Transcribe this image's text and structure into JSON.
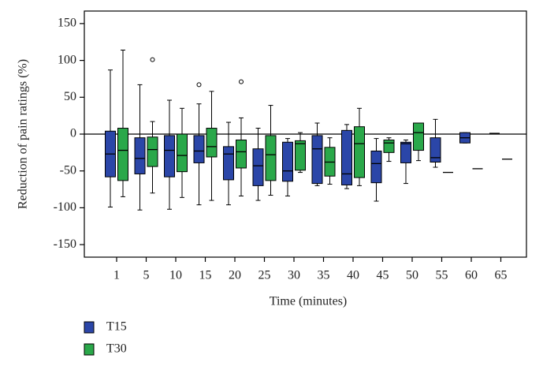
{
  "chart_data": {
    "type": "box",
    "y_label": "Reduction of pain ratings (%)",
    "x_label": "Time (minutes)",
    "categories": [
      "1",
      "5",
      "10",
      "15",
      "20",
      "25",
      "30",
      "35",
      "40",
      "45",
      "50",
      "55",
      "60",
      "65"
    ],
    "ylim": [
      -167,
      167
    ],
    "yticks": [
      -150,
      -100,
      -50,
      0,
      50,
      100,
      150
    ],
    "legend": "bottom-left",
    "series": [
      {
        "name": "T15",
        "color": "#2b46a8",
        "low": [
          -99,
          -103,
          -102,
          -96,
          -96,
          -90,
          -84,
          -70,
          -74,
          -91,
          -67,
          -45,
          -12,
          null
        ],
        "q1": [
          -58,
          -54,
          -58,
          -39,
          -62,
          -70,
          -64,
          -67,
          -69,
          -66,
          -39,
          -38,
          -12,
          null
        ],
        "median": [
          -27,
          -33,
          -22,
          -23,
          -27,
          -43,
          -50,
          -20,
          -54,
          -40,
          -13,
          -32,
          -5,
          1
        ],
        "q3": [
          4,
          -5,
          -2,
          -2,
          -17,
          -20,
          -11,
          -2,
          5,
          -23,
          -11,
          -5,
          2,
          null
        ],
        "high": [
          87,
          67,
          46,
          41,
          16,
          8,
          -6,
          15,
          13,
          -6,
          -8,
          20,
          2,
          null
        ],
        "outliers": [
          [],
          [],
          [],
          [
            67
          ],
          [],
          [],
          [],
          [],
          [],
          [],
          [],
          [],
          [],
          []
        ]
      },
      {
        "name": "T30",
        "color": "#2aa84a",
        "low": [
          -85,
          -80,
          -86,
          -90,
          -84,
          -83,
          -52,
          -68,
          -70,
          -37,
          -36,
          null,
          null,
          null
        ],
        "q1": [
          -63,
          -44,
          -51,
          -31,
          -46,
          -63,
          -49,
          -57,
          -59,
          -25,
          -22,
          null,
          null,
          null
        ],
        "median": [
          -22,
          -21,
          -29,
          -17,
          -24,
          -28,
          -13,
          -38,
          -13,
          -12,
          2,
          -52,
          -47,
          -34
        ],
        "q3": [
          8,
          -4,
          0,
          8,
          -8,
          -2,
          -9,
          -18,
          10,
          -8,
          15,
          null,
          null,
          null
        ],
        "high": [
          114,
          17,
          35,
          58,
          22,
          39,
          2,
          -5,
          35,
          -5,
          15,
          null,
          null,
          null
        ],
        "outliers": [
          [],
          [
            101
          ],
          [],
          [],
          [
            71
          ],
          [],
          [],
          [],
          [],
          [],
          [],
          [],
          [],
          []
        ]
      }
    ]
  }
}
